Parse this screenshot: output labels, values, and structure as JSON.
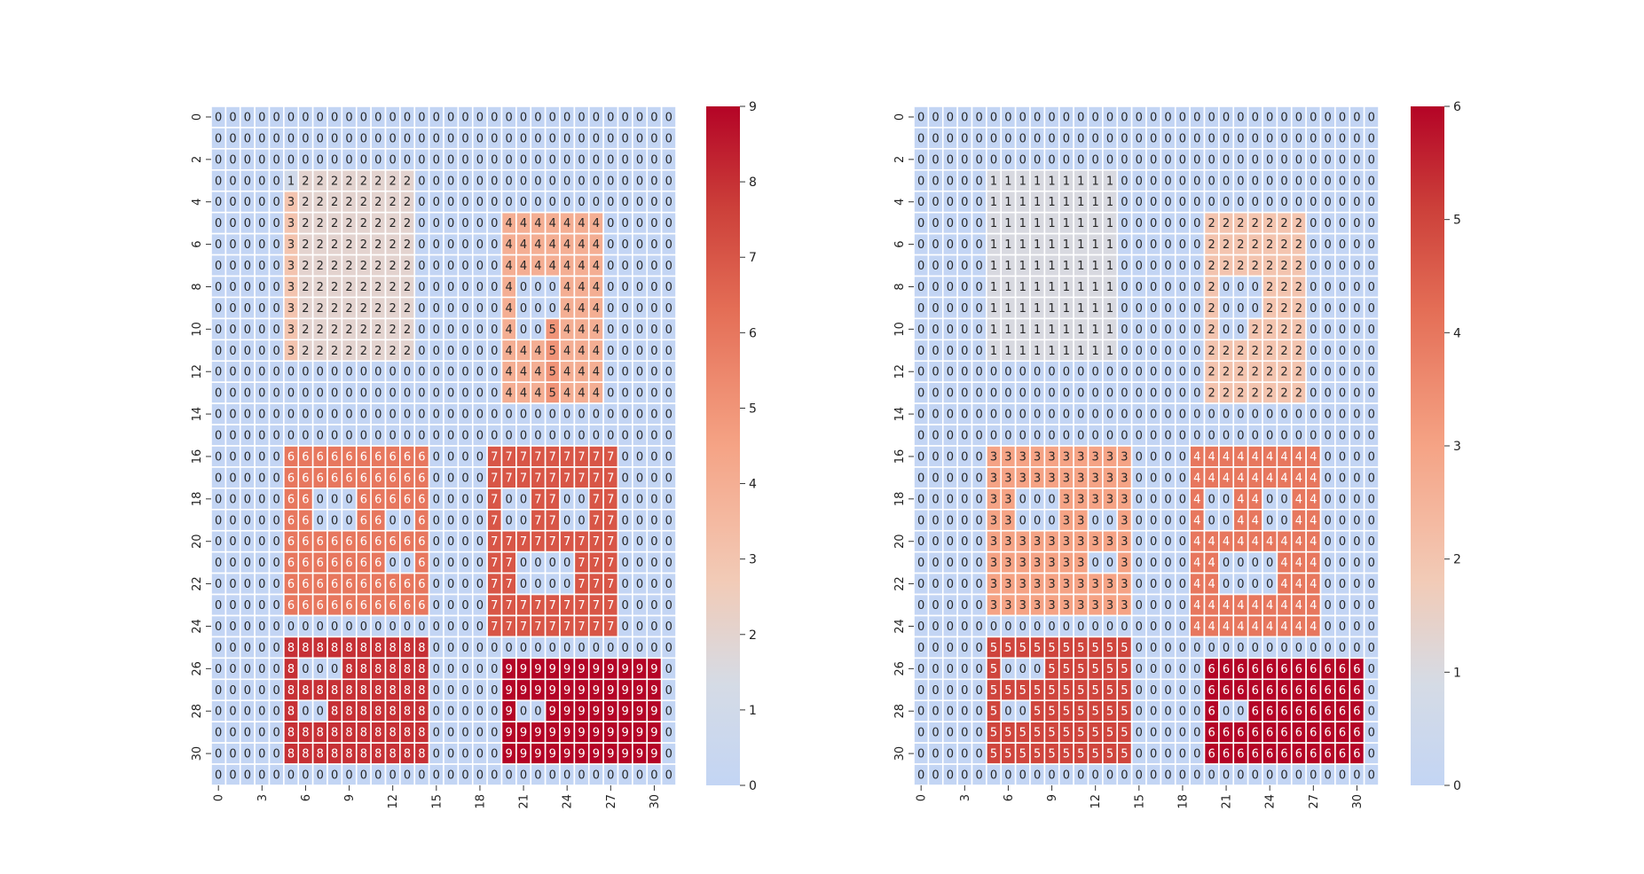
{
  "chart_data": [
    {
      "type": "heatmap",
      "title": "",
      "xlabel": "",
      "ylabel": "",
      "x_tick_labels": [
        "0",
        "3",
        "6",
        "9",
        "12",
        "15",
        "18",
        "21",
        "24",
        "27",
        "30"
      ],
      "y_tick_labels": [
        "0",
        "2",
        "4",
        "6",
        "8",
        "10",
        "12",
        "14",
        "16",
        "18",
        "20",
        "22",
        "24",
        "26",
        "28",
        "30"
      ],
      "colorbar": {
        "min": 0,
        "max": 9,
        "ticks": [
          "0",
          "1",
          "2",
          "3",
          "4",
          "5",
          "6",
          "7",
          "8",
          "9"
        ]
      },
      "colormap": {
        "low": "#c3d5f4",
        "mid": "#dddcdc",
        "high": "#b40426"
      },
      "grid": "white cell borders",
      "rows": [
        "00000000000000000000000000000000",
        "00000000000000000000000000000000",
        "00000000000000000000000000000000",
        "00000122222222000000000000000000",
        "00000322222222000000000000000000",
        "00000322222222000000444444400000",
        "00000322222222000000444444400000",
        "00000322222222000000444444400000",
        "00000322222222000000400044400000",
        "00000322222222000000400044400000",
        "00000322222222000000400544400000",
        "00000322222222000000444544400000",
        "00000000000000000000444544400000",
        "00000000000000000000444544400000",
        "00000000000000000000000000000000",
        "00000000000000000000000000000000",
        "00000666666666600007777777770000",
        "00000666666666600007777777770000",
        "00000660006666600007007700770000",
        "00000660006600600007007700770000",
        "00000666666666600007777777770000",
        "00000666666600600007700007770000",
        "00000666666666600007700007770000",
        "00000666666666600007777777770000",
        "00000000000000000007777777770000",
        "00000888888888800000000000000000",
        "00000800088888800000999999999990",
        "00000888888888800000999999999990",
        "00000800888888800000900999999990",
        "00000888888888800000999999999990",
        "00000888888888800000999999999990",
        "00000000000000000000000000000000"
      ]
    },
    {
      "type": "heatmap",
      "title": "",
      "xlabel": "",
      "ylabel": "",
      "x_tick_labels": [
        "0",
        "3",
        "6",
        "9",
        "12",
        "15",
        "18",
        "21",
        "24",
        "27",
        "30"
      ],
      "y_tick_labels": [
        "0",
        "2",
        "4",
        "6",
        "8",
        "10",
        "12",
        "14",
        "16",
        "18",
        "20",
        "22",
        "24",
        "26",
        "28",
        "30"
      ],
      "colorbar": {
        "min": 0,
        "max": 6,
        "ticks": [
          "0",
          "1",
          "2",
          "3",
          "4",
          "5",
          "6"
        ]
      },
      "colormap": {
        "low": "#c3d5f4",
        "mid": "#dddcdc",
        "high": "#b40426"
      },
      "grid": "white cell borders",
      "rows": [
        "00000000000000000000000000000000",
        "00000000000000000000000000000000",
        "00000000000000000000000000000000",
        "00000111111111000000000000000000",
        "00000111111111000000000000000000",
        "00000111111111000000222222200000",
        "00000111111111000000222222200000",
        "00000111111111000000222222200000",
        "00000111111111000000200022200000",
        "00000111111111000000200022200000",
        "00000111111111000000200222200000",
        "00000111111111000000222222200000",
        "00000000000000000000222222200000",
        "00000000000000000000222222200000",
        "00000000000000000000000000000000",
        "00000000000000000000000000000000",
        "00000333333333300004444444440000",
        "00000333333333300004444444440000",
        "00000330003333300004004400440000",
        "00000330003300300004004400440000",
        "00000333333333300004444444440000",
        "00000333333300300004400004440000",
        "00000333333333300004400004440000",
        "00000333333333300004444444440000",
        "00000000000000000004444444440000",
        "00000555555555500000000000000000",
        "00000500055555500000666666666660",
        "00000555555555500000666666666660",
        "00000500555555500000600666666660",
        "00000555555555500000666666666660",
        "00000555555555500000666666666660",
        "00000000000000000000000000000000"
      ]
    }
  ]
}
